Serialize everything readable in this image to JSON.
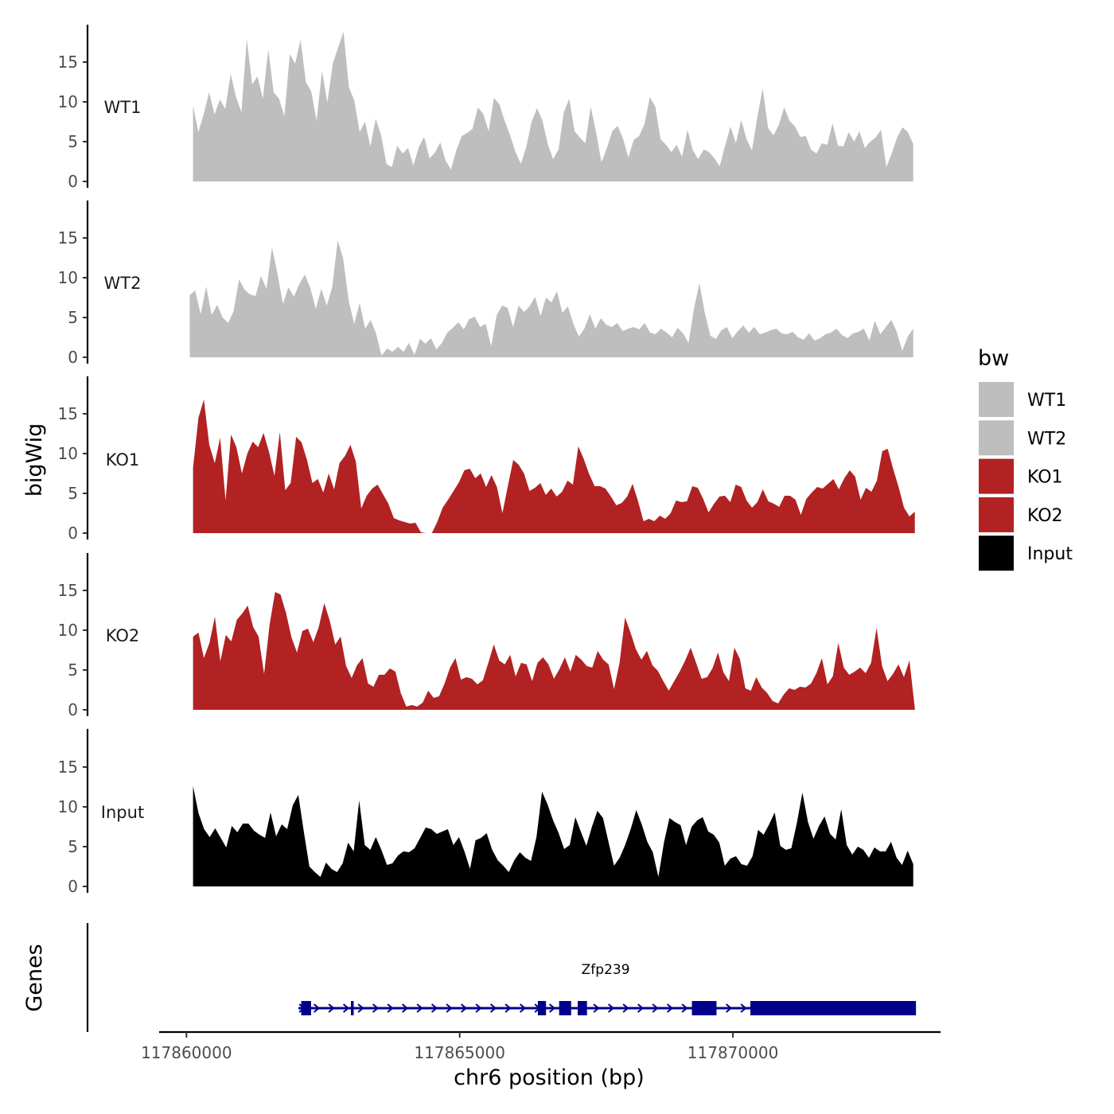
{
  "chart_data": {
    "type": "area",
    "chromosome": "chr6",
    "xlabel": "chr6 position (bp)",
    "ylabel": "bigWig",
    "gene_track_label": "Genes",
    "xlim": [
      117859500,
      117873800
    ],
    "x_ticks": [
      117860000,
      117865000,
      117870000
    ],
    "x_tick_labels": [
      "117860000",
      "117865000",
      "117870000"
    ],
    "ylim": [
      0,
      19.5
    ],
    "y_ticks": [
      0,
      5,
      10,
      15
    ],
    "y_tick_labels": [
      "0",
      "5",
      "10",
      "15"
    ],
    "legend": {
      "title": "bw",
      "position": "right",
      "entries": [
        {
          "label": "WT1",
          "color": "#bebebe"
        },
        {
          "label": "WT2",
          "color": "#bebebe"
        },
        {
          "label": "KO1",
          "color": "#b22222"
        },
        {
          "label": "KO2",
          "color": "#b22222"
        },
        {
          "label": "Input",
          "color": "#000000"
        }
      ]
    },
    "series": [
      {
        "name": "WT1",
        "color": "#bebebe",
        "x_start": 117860120,
        "x_end": 117873300,
        "values": [
          9.5,
          6.2,
          8.5,
          11.2,
          8.4,
          10.3,
          9.1,
          13.5,
          10.6,
          8.7,
          17.9,
          12.2,
          13.2,
          10.4,
          16.6,
          11.2,
          10.4,
          8.2,
          16,
          14.8,
          17.8,
          12.5,
          11.3,
          7.6,
          13.9,
          9.9,
          14.8,
          16.8,
          18.8,
          11.8,
          10.2,
          6.2,
          7.5,
          4.4,
          7.9,
          5.8,
          2.2,
          1.8,
          4.5,
          3.5,
          4.2,
          2,
          4.3,
          5.6,
          2.9,
          3.6,
          4.9,
          2.6,
          1.5,
          3.9,
          5.7,
          6.1,
          6.6,
          9.3,
          8.5,
          6.3,
          10.5,
          9.7,
          7.6,
          5.8,
          3.7,
          2.2,
          4.3,
          7.5,
          9.2,
          7.7,
          4.7,
          2.8,
          4,
          8.7,
          10.4,
          6.3,
          5.5,
          4.8,
          9.4,
          6.1,
          2.4,
          4.2,
          6.3,
          7,
          5.4,
          3,
          5.2,
          5.7,
          7.2,
          10.6,
          9.4,
          5.3,
          4.6,
          3.7,
          4.6,
          3.1,
          6.5,
          3.9,
          2.8,
          4,
          3.7,
          2.9,
          1.9,
          4.5,
          6.9,
          4.8,
          7.7,
          5.3,
          3.9,
          8.1,
          11.7,
          6.7,
          5.8,
          7.1,
          9.3,
          7.6,
          6.9,
          5.6,
          5.7,
          4,
          3.5,
          4.8,
          4.6,
          7.3,
          4.5,
          4.4,
          6.2,
          5,
          6.3,
          4.2,
          5,
          5.5,
          6.5,
          1.8,
          3.5,
          5.5,
          6.8,
          6.2,
          4.7
        ]
      },
      {
        "name": "WT2",
        "color": "#bebebe",
        "x_start": 117860060,
        "x_end": 117873300,
        "values": [
          7.8,
          8.4,
          5.4,
          8.9,
          5.3,
          6.6,
          5,
          4.3,
          5.8,
          9.8,
          8.5,
          7.9,
          7.7,
          10.2,
          8.6,
          13.8,
          10.5,
          6.7,
          8.8,
          7.6,
          9.2,
          10.4,
          8.7,
          6.1,
          8.6,
          6.5,
          8.8,
          14.7,
          12.4,
          7.1,
          4.2,
          6.8,
          3.6,
          4.7,
          3,
          0.2,
          1.1,
          0.7,
          1.3,
          0.7,
          1.8,
          0.3,
          2.3,
          1.7,
          2.4,
          1,
          1.8,
          3.1,
          3.7,
          4.4,
          3.5,
          4.8,
          5.1,
          3.8,
          4.2,
          1.4,
          5.3,
          6.5,
          6.2,
          3.8,
          6.5,
          5.7,
          6.4,
          7.6,
          5.2,
          7.5,
          6.9,
          8.3,
          5.6,
          6.4,
          4.2,
          2.6,
          3.6,
          5.4,
          3.6,
          4.9,
          4.1,
          3.8,
          4.3,
          3.3,
          3.6,
          3.8,
          3.5,
          4.3,
          3.1,
          2.9,
          3.6,
          3.1,
          2.5,
          3.7,
          3,
          1.8,
          6.1,
          9.3,
          5.5,
          2.7,
          2.3,
          3.4,
          3.8,
          2.4,
          3.3,
          4,
          3.1,
          3.8,
          2.9,
          3.1,
          3.4,
          3.6,
          3,
          2.9,
          3.2,
          2.5,
          2.2,
          3,
          2.1,
          2.4,
          2.9,
          3.1,
          3.6,
          2.8,
          2.4,
          3,
          3.2,
          3.6,
          2.1,
          4.6,
          2.9,
          3.8,
          4.7,
          3.2,
          0.8,
          2.6,
          3.6
        ]
      },
      {
        "name": "KO1",
        "color": "#b22222",
        "x_start": 117860120,
        "x_end": 117873330,
        "values": [
          8.2,
          14.5,
          16.8,
          11.1,
          8.8,
          12,
          4.1,
          12.4,
          10.8,
          7.5,
          10,
          11.5,
          10.8,
          12.6,
          10.2,
          7.2,
          12.7,
          5.4,
          6.3,
          12.1,
          11.4,
          9.2,
          6.3,
          6.8,
          5.1,
          7.5,
          5.5,
          8.8,
          9.7,
          11.1,
          9,
          3.1,
          4.7,
          5.6,
          6.1,
          4.9,
          3.7,
          1.9,
          1.6,
          1.4,
          1.2,
          1.3,
          0.1,
          0,
          0,
          1.4,
          3.2,
          4.2,
          5.3,
          6.4,
          7.9,
          8.1,
          6.9,
          7.5,
          5.8,
          7.3,
          5.8,
          2.5,
          5.9,
          9.2,
          8.6,
          7.5,
          5.3,
          5.7,
          6.3,
          4.8,
          5.6,
          4.6,
          5.2,
          6.6,
          6.1,
          10.9,
          9.3,
          7.4,
          5.9,
          5.9,
          5.6,
          4.6,
          3.5,
          3.8,
          4.6,
          6.2,
          4,
          1.5,
          1.8,
          1.5,
          2.2,
          1.8,
          2.5,
          4.1,
          3.9,
          4,
          5.9,
          5.7,
          4.3,
          2.6,
          3.7,
          4.6,
          4.7,
          3.9,
          6.1,
          5.8,
          4.1,
          3.2,
          3.9,
          5.5,
          4,
          3.7,
          3.3,
          4.7,
          4.7,
          4.2,
          2.3,
          4.3,
          5.1,
          5.8,
          5.6,
          6.2,
          6.8,
          5.5,
          6.9,
          7.9,
          7.1,
          4.2,
          5.7,
          5.2,
          6.6,
          10.3,
          10.6,
          8.1,
          5.8,
          3.2,
          2.1,
          2.7
        ]
      },
      {
        "name": "KO2",
        "color": "#b22222",
        "x_start": 117860120,
        "x_end": 117873330,
        "values": [
          9.2,
          9.7,
          6.5,
          8.4,
          11.7,
          6.1,
          9.4,
          8.6,
          11.3,
          12.1,
          13.1,
          10.4,
          9.2,
          4.5,
          10.7,
          14.8,
          14.5,
          12.2,
          9.1,
          7.2,
          9.9,
          10.2,
          8.5,
          10.4,
          13.4,
          11.2,
          8.2,
          9.2,
          5.5,
          4,
          5.6,
          6.5,
          3.3,
          2.9,
          4.4,
          4.4,
          5.2,
          4.8,
          2.1,
          0.4,
          0.6,
          0.4,
          0.9,
          2.4,
          1.5,
          1.7,
          3.3,
          5.3,
          6.5,
          3.8,
          4.1,
          3.9,
          3.2,
          3.7,
          5.9,
          8.2,
          6.2,
          5.7,
          6.9,
          4.2,
          5.9,
          5.7,
          3.6,
          5.9,
          6.6,
          5.7,
          3.9,
          5.1,
          6.6,
          4.8,
          6.9,
          6.3,
          5.5,
          5.3,
          7.4,
          6.3,
          5.7,
          2.6,
          5.9,
          11.6,
          9.7,
          7.6,
          6.3,
          7.4,
          5.6,
          4.9,
          3.6,
          2.4,
          3.6,
          4.8,
          6.2,
          7.8,
          5.9,
          3.9,
          4.1,
          5.2,
          7.2,
          4.7,
          3.6,
          7.8,
          6.4,
          2.7,
          2.4,
          4.1,
          2.8,
          2.1,
          1.1,
          0.8,
          1.9,
          2.7,
          2.5,
          2.9,
          2.8,
          3.3,
          4.6,
          6.5,
          3.2,
          4.2,
          8.4,
          5.3,
          4.4,
          4.8,
          5.3,
          4.6,
          5.9,
          10.3,
          5.5,
          3.6,
          4.5,
          5.7,
          4.1,
          6.2,
          0.2
        ]
      },
      {
        "name": "Input",
        "color": "#000000",
        "x_start": 117860120,
        "x_end": 117873300,
        "values": [
          12.6,
          9.2,
          7.2,
          6.2,
          7.3,
          6.1,
          4.9,
          7.6,
          6.8,
          7.9,
          7.9,
          7,
          6.5,
          6.1,
          9.3,
          6.3,
          7.8,
          7.2,
          10.2,
          11.5,
          6.9,
          2.5,
          1.8,
          1.2,
          3,
          2.2,
          1.8,
          2.9,
          5.5,
          4.4,
          10.8,
          5.2,
          4.6,
          6.2,
          4.6,
          2.7,
          2.9,
          3.9,
          4.4,
          4.3,
          4.8,
          6.1,
          7.4,
          7.2,
          6.6,
          6.9,
          7.2,
          5.2,
          6.2,
          4.4,
          2.2,
          5.8,
          6.1,
          6.7,
          4.6,
          3.3,
          2.6,
          1.8,
          3.3,
          4.3,
          3.6,
          3.2,
          6.2,
          11.9,
          10.3,
          8.3,
          6.7,
          4.7,
          5.2,
          8.7,
          6.9,
          5.1,
          7.5,
          9.5,
          8.6,
          5.6,
          2.6,
          3.6,
          5.2,
          7.2,
          9.6,
          7.8,
          5.6,
          4.3,
          1.2,
          5.5,
          8.6,
          8.1,
          7.7,
          5.2,
          7.5,
          8.3,
          8.7,
          6.9,
          6.5,
          5.5,
          2.6,
          3.5,
          3.8,
          2.8,
          2.6,
          3.8,
          7.1,
          6.5,
          7.8,
          9.3,
          5.1,
          4.6,
          4.8,
          8,
          11.8,
          8.1,
          6,
          7.6,
          8.8,
          6.6,
          5.9,
          9.7,
          5.2,
          4,
          5,
          4.6,
          3.6,
          4.9,
          4.4,
          4.4,
          5.6,
          3.6,
          2.7,
          4.5,
          2.8
        ]
      }
    ],
    "gene": {
      "name": "Zfp239",
      "strand": "+",
      "start": 117862050,
      "end": 117873350,
      "color": "#00008b",
      "exons": [
        [
          117862100,
          117862280
        ],
        [
          117863010,
          117863060
        ],
        [
          117866430,
          117866580
        ],
        [
          117866820,
          117867040
        ],
        [
          117867160,
          117867330
        ],
        [
          117869250,
          117869700
        ],
        [
          117870320,
          117873350
        ]
      ]
    }
  }
}
